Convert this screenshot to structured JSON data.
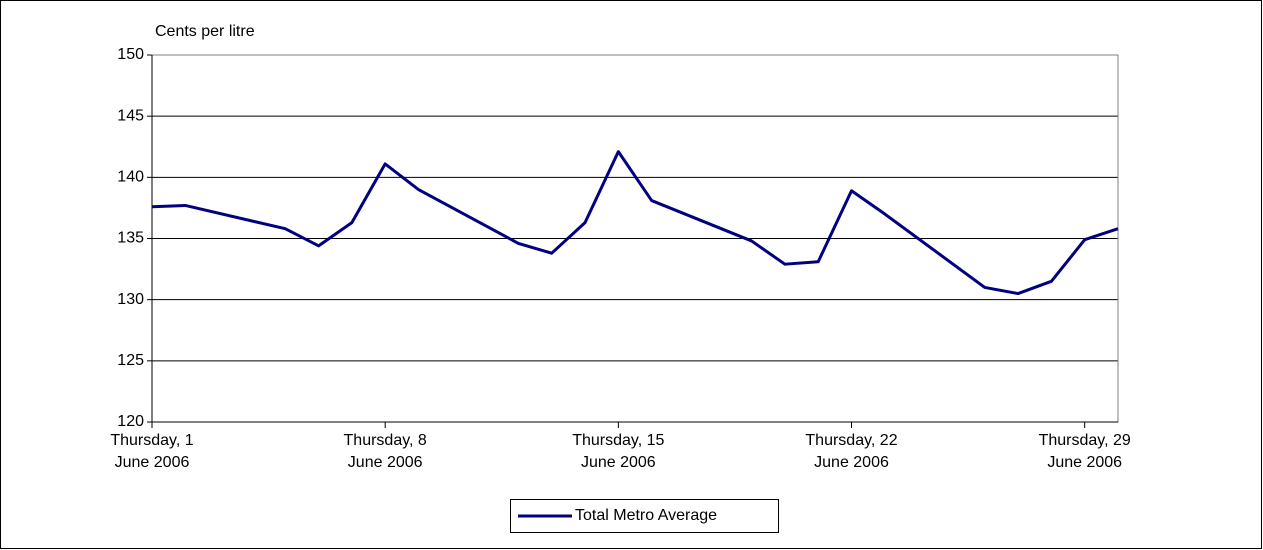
{
  "chart_data": {
    "type": "line",
    "y_axis_label": "Cents per litre",
    "x": [
      1,
      2,
      5,
      6,
      7,
      8,
      9,
      12,
      13,
      14,
      15,
      16,
      19,
      20,
      21,
      22,
      23,
      26,
      27,
      28,
      29,
      30
    ],
    "series": [
      {
        "name": "Total Metro Average",
        "color": "#000080",
        "values": [
          137.6,
          137.7,
          135.8,
          134.4,
          136.3,
          141.1,
          139.0,
          134.6,
          133.8,
          136.3,
          142.1,
          138.1,
          134.8,
          132.9,
          133.1,
          138.9,
          137.0,
          131.0,
          130.5,
          131.5,
          134.9,
          135.8
        ]
      }
    ],
    "xlim": [
      1,
      30
    ],
    "xticks": [
      {
        "value": 1,
        "label": "Thursday, 1 June 2006"
      },
      {
        "value": 8,
        "label": "Thursday, 8 June 2006"
      },
      {
        "value": 15,
        "label": "Thursday, 15 June 2006"
      },
      {
        "value": 22,
        "label": "Thursday, 22 June 2006"
      },
      {
        "value": 29,
        "label": "Thursday, 29 June 2006"
      }
    ],
    "ylim": [
      120,
      150
    ],
    "yticks": [
      120,
      125,
      130,
      135,
      140,
      145,
      150
    ],
    "grid": true,
    "legend": "bottom"
  }
}
